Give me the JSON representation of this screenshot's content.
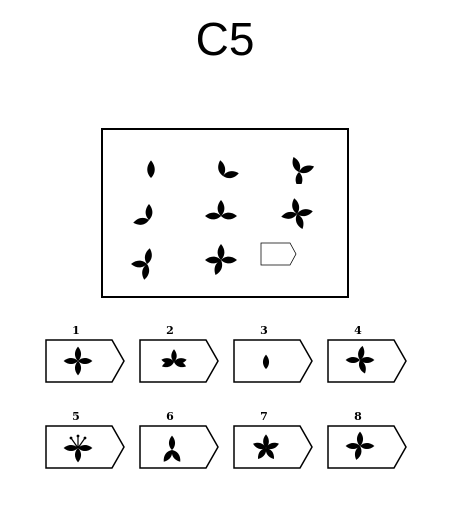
{
  "title": "C5",
  "options": [
    "1",
    "2",
    "3",
    "4",
    "5",
    "6",
    "7",
    "8"
  ]
}
